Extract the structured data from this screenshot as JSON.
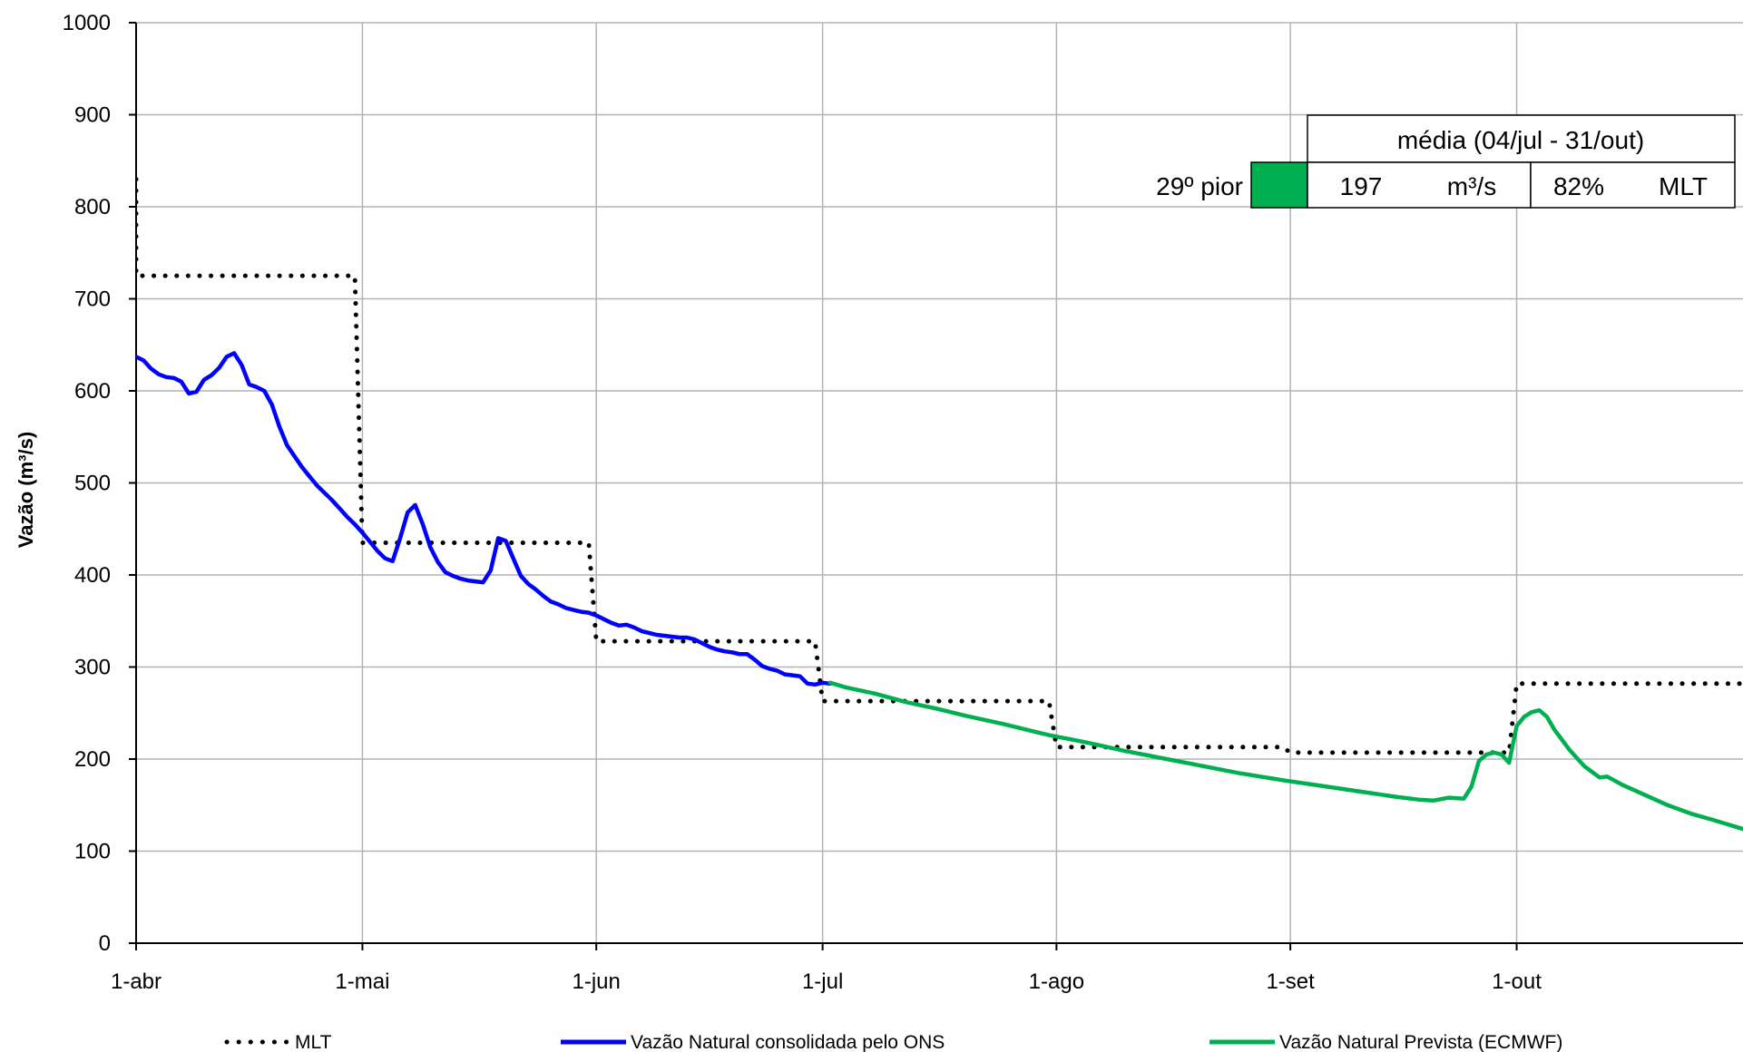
{
  "chart_data": {
    "type": "line",
    "title": "",
    "xlabel": "",
    "ylabel": "Vazão (m³/s)",
    "ylim": [
      0,
      1000
    ],
    "yticks": [
      0,
      100,
      200,
      300,
      400,
      500,
      600,
      700,
      800,
      900,
      1000
    ],
    "xlim": [
      "01-abr",
      "31-out"
    ],
    "x_tick_labels": [
      {
        "date": "01-abr",
        "label": "1-abr"
      },
      {
        "date": "01-mai",
        "label": "1-mai"
      },
      {
        "date": "01-jun",
        "label": "1-jun"
      },
      {
        "date": "01-jul",
        "label": "1-jul"
      },
      {
        "date": "01-ago",
        "label": "1-ago"
      },
      {
        "date": "01-set",
        "label": "1-set"
      },
      {
        "date": "01-out",
        "label": "1-out"
      }
    ],
    "grid": true,
    "legend_position": "bottom",
    "series": [
      {
        "name": "MLT",
        "color": "#000000",
        "style": "dotted",
        "points": [
          [
            "01-abr",
            830
          ],
          [
            "01-abr",
            725
          ],
          [
            "30-abr",
            725
          ],
          [
            "01-mai",
            435
          ],
          [
            "31-mai",
            435
          ],
          [
            "01-jun",
            328
          ],
          [
            "30-jun",
            328
          ],
          [
            "01-jul",
            263
          ],
          [
            "31-jul",
            263
          ],
          [
            "01-ago",
            213
          ],
          [
            "31-ago",
            213
          ],
          [
            "01-set",
            207
          ],
          [
            "30-set",
            207
          ],
          [
            "01-out",
            282
          ],
          [
            "31-out",
            282
          ]
        ]
      },
      {
        "name": "Vazão Natural consolidada pelo ONS",
        "color": "#0000ff",
        "style": "solid",
        "points": [
          [
            "01-abr",
            637
          ],
          [
            "02-abr",
            633
          ],
          [
            "03-abr",
            624
          ],
          [
            "04-abr",
            618
          ],
          [
            "05-abr",
            615
          ],
          [
            "06-abr",
            614
          ],
          [
            "07-abr",
            610
          ],
          [
            "08-abr",
            597
          ],
          [
            "09-abr",
            599
          ],
          [
            "10-abr",
            612
          ],
          [
            "11-abr",
            617
          ],
          [
            "12-abr",
            625
          ],
          [
            "13-abr",
            637
          ],
          [
            "14-abr",
            641
          ],
          [
            "15-abr",
            628
          ],
          [
            "16-abr",
            607
          ],
          [
            "17-abr",
            604
          ],
          [
            "18-abr",
            600
          ],
          [
            "19-abr",
            585
          ],
          [
            "20-abr",
            561
          ],
          [
            "21-abr",
            541
          ],
          [
            "22-abr",
            529
          ],
          [
            "23-abr",
            517
          ],
          [
            "24-abr",
            507
          ],
          [
            "25-abr",
            497
          ],
          [
            "26-abr",
            489
          ],
          [
            "27-abr",
            481
          ],
          [
            "28-abr",
            472
          ],
          [
            "29-abr",
            463
          ],
          [
            "30-abr",
            455
          ],
          [
            "01-mai",
            446
          ],
          [
            "02-mai",
            436
          ],
          [
            "03-mai",
            426
          ],
          [
            "04-mai",
            418
          ],
          [
            "05-mai",
            415
          ],
          [
            "06-mai",
            440
          ],
          [
            "07-mai",
            468
          ],
          [
            "08-mai",
            476
          ],
          [
            "09-mai",
            455
          ],
          [
            "10-mai",
            430
          ],
          [
            "11-mai",
            414
          ],
          [
            "12-mai",
            403
          ],
          [
            "13-mai",
            399
          ],
          [
            "14-mai",
            396
          ],
          [
            "15-mai",
            394
          ],
          [
            "16-mai",
            393
          ],
          [
            "17-mai",
            392
          ],
          [
            "18-mai",
            405
          ],
          [
            "19-mai",
            440
          ],
          [
            "20-mai",
            437
          ],
          [
            "21-mai",
            418
          ],
          [
            "22-mai",
            399
          ],
          [
            "23-mai",
            390
          ],
          [
            "24-mai",
            384
          ],
          [
            "25-mai",
            377
          ],
          [
            "26-mai",
            371
          ],
          [
            "27-mai",
            368
          ],
          [
            "28-mai",
            364
          ],
          [
            "29-mai",
            362
          ],
          [
            "30-mai",
            360
          ],
          [
            "31-mai",
            359
          ],
          [
            "01-jun",
            356
          ],
          [
            "02-jun",
            352
          ],
          [
            "03-jun",
            348
          ],
          [
            "04-jun",
            345
          ],
          [
            "05-jun",
            346
          ],
          [
            "06-jun",
            343
          ],
          [
            "07-jun",
            339
          ],
          [
            "08-jun",
            337
          ],
          [
            "09-jun",
            335
          ],
          [
            "10-jun",
            334
          ],
          [
            "11-jun",
            333
          ],
          [
            "12-jun",
            332
          ],
          [
            "13-jun",
            332
          ],
          [
            "14-jun",
            330
          ],
          [
            "15-jun",
            326
          ],
          [
            "16-jun",
            322
          ],
          [
            "17-jun",
            319
          ],
          [
            "18-jun",
            317
          ],
          [
            "19-jun",
            316
          ],
          [
            "20-jun",
            314
          ],
          [
            "21-jun",
            314
          ],
          [
            "22-jun",
            308
          ],
          [
            "23-jun",
            301
          ],
          [
            "24-jun",
            298
          ],
          [
            "25-jun",
            296
          ],
          [
            "26-jun",
            292
          ],
          [
            "27-jun",
            291
          ],
          [
            "28-jun",
            290
          ],
          [
            "29-jun",
            282
          ],
          [
            "30-jun",
            281
          ],
          [
            "01-jul",
            283
          ],
          [
            "02-jul",
            282
          ]
        ]
      },
      {
        "name": "Vazão Natural Prevista (ECMWF)",
        "color": "#00b050",
        "style": "solid",
        "points": [
          [
            "02-jul",
            283
          ],
          [
            "04-jul",
            278
          ],
          [
            "08-jul",
            271
          ],
          [
            "12-jul",
            262
          ],
          [
            "16-jul",
            255
          ],
          [
            "20-jul",
            247
          ],
          [
            "25-jul",
            238
          ],
          [
            "31-jul",
            226
          ],
          [
            "05-ago",
            218
          ],
          [
            "10-ago",
            209
          ],
          [
            "15-ago",
            201
          ],
          [
            "20-ago",
            193
          ],
          [
            "25-ago",
            185
          ],
          [
            "31-ago",
            177
          ],
          [
            "05-set",
            171
          ],
          [
            "10-set",
            165
          ],
          [
            "15-set",
            159
          ],
          [
            "18-set",
            156
          ],
          [
            "20-set",
            155
          ],
          [
            "22-set",
            158
          ],
          [
            "24-set",
            157
          ],
          [
            "25-set",
            170
          ],
          [
            "26-set",
            198
          ],
          [
            "27-set",
            205
          ],
          [
            "28-set",
            207
          ],
          [
            "29-set",
            205
          ],
          [
            "30-set",
            196
          ],
          [
            "01-out",
            236
          ],
          [
            "02-out",
            246
          ],
          [
            "03-out",
            251
          ],
          [
            "04-out",
            253
          ],
          [
            "05-out",
            246
          ],
          [
            "06-out",
            232
          ],
          [
            "08-out",
            210
          ],
          [
            "10-out",
            192
          ],
          [
            "12-out",
            180
          ],
          [
            "13-out",
            181
          ],
          [
            "15-out",
            172
          ],
          [
            "18-out",
            161
          ],
          [
            "21-out",
            150
          ],
          [
            "24-out",
            141
          ],
          [
            "27-out",
            134
          ],
          [
            "31-out",
            124
          ]
        ]
      }
    ],
    "summary_box": {
      "header": "média (04/jul - 31/out)",
      "rank_label": "29º pior",
      "rank_color": "#00b050",
      "value": "197",
      "unit": "m³/s",
      "percent": "82%",
      "reference": "MLT"
    }
  }
}
